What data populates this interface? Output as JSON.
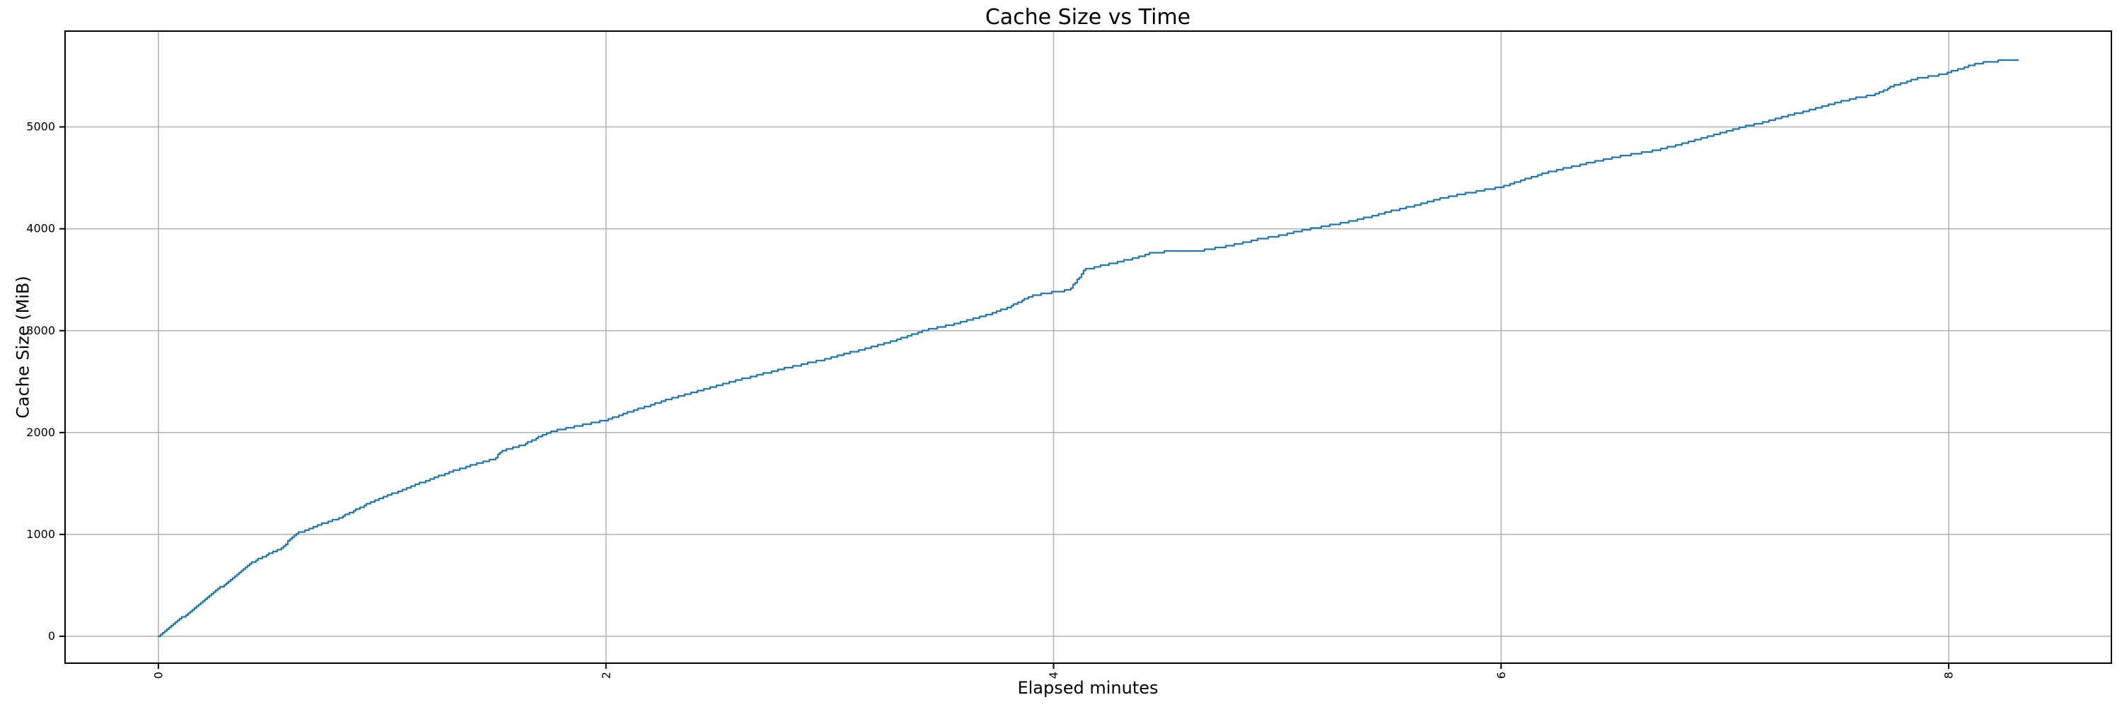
{
  "figure": {
    "background": "#ffffff"
  },
  "colors": {
    "line": "#1f77b4",
    "grid": "#b0b0b0",
    "spine": "#000000",
    "text": "#000000"
  },
  "chart_data": {
    "type": "line",
    "title": "Cache Size vs Time",
    "xlabel": "Elapsed minutes",
    "ylabel": "Cache Size (MiB)",
    "x_ticks": [
      0,
      2,
      4,
      6,
      8
    ],
    "y_ticks": [
      0,
      1000,
      2000,
      3000,
      4000,
      5000
    ],
    "xlim": [
      -0.417,
      8.727
    ],
    "ylim": [
      -264,
      5940
    ],
    "grid": true,
    "legend": null,
    "x_tick_rotation_deg": 90,
    "series": [
      {
        "name": "cache_size_mib",
        "color": "#1f77b4",
        "style": "staircase",
        "points": [
          [
            0.0,
            0
          ],
          [
            0.05,
            85
          ],
          [
            0.1,
            175
          ],
          [
            0.15,
            260
          ],
          [
            0.2,
            350
          ],
          [
            0.25,
            435
          ],
          [
            0.3,
            520
          ],
          [
            0.35,
            610
          ],
          [
            0.4,
            700
          ],
          [
            0.45,
            760
          ],
          [
            0.5,
            815
          ],
          [
            0.55,
            865
          ],
          [
            0.59,
            960
          ],
          [
            0.62,
            1010
          ],
          [
            0.7,
            1080
          ],
          [
            0.81,
            1160
          ],
          [
            0.9,
            1265
          ],
          [
            1.0,
            1360
          ],
          [
            1.1,
            1445
          ],
          [
            1.2,
            1530
          ],
          [
            1.3,
            1610
          ],
          [
            1.4,
            1680
          ],
          [
            1.5,
            1740
          ],
          [
            1.53,
            1820
          ],
          [
            1.62,
            1870
          ],
          [
            1.74,
            2000
          ],
          [
            1.86,
            2060
          ],
          [
            2.0,
            2120
          ],
          [
            2.1,
            2200
          ],
          [
            2.2,
            2270
          ],
          [
            2.3,
            2340
          ],
          [
            2.4,
            2400
          ],
          [
            2.5,
            2460
          ],
          [
            2.6,
            2520
          ],
          [
            2.7,
            2575
          ],
          [
            2.8,
            2630
          ],
          [
            2.9,
            2680
          ],
          [
            3.0,
            2730
          ],
          [
            3.1,
            2790
          ],
          [
            3.2,
            2845
          ],
          [
            3.3,
            2910
          ],
          [
            3.42,
            3000
          ],
          [
            3.55,
            3060
          ],
          [
            3.7,
            3150
          ],
          [
            3.8,
            3230
          ],
          [
            3.9,
            3340
          ],
          [
            4.0,
            3380
          ],
          [
            4.07,
            3400
          ],
          [
            4.14,
            3600
          ],
          [
            4.25,
            3655
          ],
          [
            4.35,
            3705
          ],
          [
            4.45,
            3770
          ],
          [
            4.55,
            3778
          ],
          [
            4.65,
            3782
          ],
          [
            4.8,
            3840
          ],
          [
            4.9,
            3890
          ],
          [
            5.0,
            3930
          ],
          [
            5.15,
            4000
          ],
          [
            5.3,
            4060
          ],
          [
            5.4,
            4110
          ],
          [
            5.5,
            4170
          ],
          [
            5.6,
            4220
          ],
          [
            5.7,
            4280
          ],
          [
            5.8,
            4330
          ],
          [
            5.9,
            4370
          ],
          [
            6.0,
            4410
          ],
          [
            6.1,
            4480
          ],
          [
            6.2,
            4550
          ],
          [
            6.3,
            4600
          ],
          [
            6.4,
            4650
          ],
          [
            6.55,
            4720
          ],
          [
            6.67,
            4760
          ],
          [
            6.8,
            4830
          ],
          [
            6.9,
            4890
          ],
          [
            7.0,
            4950
          ],
          [
            7.08,
            5000
          ],
          [
            7.2,
            5060
          ],
          [
            7.3,
            5120
          ],
          [
            7.4,
            5180
          ],
          [
            7.5,
            5240
          ],
          [
            7.6,
            5290
          ],
          [
            7.66,
            5310
          ],
          [
            7.75,
            5400
          ],
          [
            7.85,
            5470
          ],
          [
            7.98,
            5520
          ],
          [
            8.05,
            5570
          ],
          [
            8.12,
            5620
          ],
          [
            8.2,
            5645
          ],
          [
            8.31,
            5657
          ]
        ]
      }
    ]
  }
}
